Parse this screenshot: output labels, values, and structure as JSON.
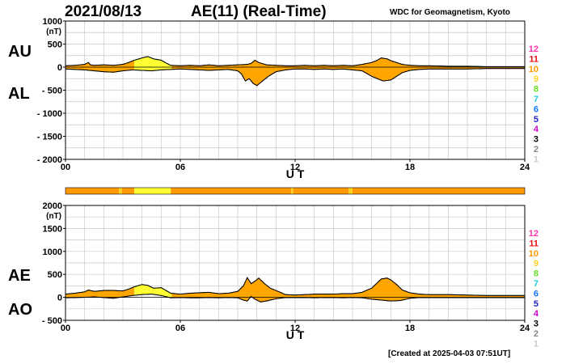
{
  "header": {
    "date": "2021/08/13",
    "title": "AE(11) (Real-Time)",
    "source": "WDC for Geomagnetism, Kyoto"
  },
  "footer": {
    "created": "[Created at 2025-04-03 07:51UT]"
  },
  "colors": {
    "fill_main": "#FFA500",
    "fill_alt": "#FFFF33",
    "curve": "#000000",
    "grid": "#C8C8C8"
  },
  "legend": {
    "stations": [
      {
        "label": "12",
        "color": "#FF33AA"
      },
      {
        "label": "11",
        "color": "#EE1111"
      },
      {
        "label": "10",
        "color": "#FF9900"
      },
      {
        "label": "9",
        "color": "#FFD21E"
      },
      {
        "label": "8",
        "color": "#66DD22"
      },
      {
        "label": "7",
        "color": "#22CCDD"
      },
      {
        "label": "6",
        "color": "#1177FF"
      },
      {
        "label": "5",
        "color": "#2222CC"
      },
      {
        "label": "4",
        "color": "#CC00CC"
      },
      {
        "label": "3",
        "color": "#000000"
      },
      {
        "label": "2",
        "color": "#888888"
      },
      {
        "label": "1",
        "color": "#CCCCCC"
      }
    ]
  },
  "station_count_bar": [
    {
      "x0": 0,
      "x1": 2.8,
      "c": "#FF9900"
    },
    {
      "x0": 2.8,
      "x1": 2.95,
      "c": "#FFD21E"
    },
    {
      "x0": 2.95,
      "x1": 3.6,
      "c": "#FF9900"
    },
    {
      "x0": 3.6,
      "x1": 5.5,
      "c": "#FFFF33"
    },
    {
      "x0": 5.5,
      "x1": 11.8,
      "c": "#FF9900"
    },
    {
      "x0": 11.8,
      "x1": 11.9,
      "c": "#FFD21E"
    },
    {
      "x0": 11.9,
      "x1": 14.8,
      "c": "#FF9900"
    },
    {
      "x0": 14.8,
      "x1": 15.0,
      "c": "#FFD21E"
    },
    {
      "x0": 15.0,
      "x1": 24,
      "c": "#FF9900"
    }
  ],
  "chart_data": [
    {
      "type": "area",
      "upper_label": "AU",
      "lower_label": "AL",
      "unit": "(nT)",
      "xlabel": "U T",
      "xlim": [
        0,
        24
      ],
      "ylim": [
        -2000,
        1000
      ],
      "yticks": [
        1000,
        500,
        0,
        -500,
        -1000,
        -1500,
        -2000
      ],
      "ytick_labels": [
        "1000",
        "500",
        "0",
        "- 500",
        "- 1000",
        "- 1500",
        "- 2000"
      ],
      "xticks": [
        0,
        6,
        12,
        18,
        24
      ],
      "xtick_labels": [
        "00",
        "06",
        "12",
        "18",
        "24"
      ],
      "yellow_ranges": [
        [
          3.6,
          5.5
        ]
      ],
      "series": [
        {
          "name": "AU",
          "x": [
            0,
            0.5,
            1,
            1.2,
            1.3,
            1.5,
            2,
            2.5,
            3,
            3.3,
            3.6,
            4,
            4.3,
            4.6,
            5,
            5.3,
            5.5,
            6,
            6.5,
            7,
            7.5,
            8,
            8.5,
            9,
            9.5,
            9.7,
            9.9,
            10.1,
            10.5,
            11,
            11.5,
            12,
            12.5,
            13,
            13.5,
            14,
            14.5,
            15,
            15.5,
            16,
            16.3,
            16.5,
            16.8,
            17,
            17.3,
            17.6,
            18,
            18.5,
            19,
            20,
            21,
            22,
            23,
            24
          ],
          "values": [
            30,
            40,
            60,
            100,
            50,
            40,
            50,
            40,
            60,
            100,
            150,
            200,
            230,
            180,
            150,
            80,
            40,
            30,
            40,
            30,
            50,
            30,
            40,
            50,
            60,
            80,
            150,
            100,
            50,
            40,
            30,
            30,
            40,
            30,
            40,
            30,
            40,
            30,
            60,
            100,
            150,
            200,
            180,
            140,
            100,
            60,
            40,
            30,
            30,
            20,
            20,
            10,
            10,
            10
          ]
        },
        {
          "name": "AL",
          "x": [
            0,
            0.5,
            1,
            1.5,
            2,
            2.5,
            3,
            3.5,
            4,
            4.5,
            5,
            5.5,
            6,
            6.5,
            7,
            7.5,
            8,
            8.5,
            9,
            9.2,
            9.4,
            9.6,
            9.8,
            10,
            10.3,
            10.6,
            11,
            11.5,
            12,
            12.5,
            13,
            13.5,
            14,
            14.5,
            15,
            15.5,
            15.8,
            16,
            16.3,
            16.6,
            17,
            17.3,
            17.6,
            18,
            18.5,
            19,
            20,
            21,
            22,
            23,
            24
          ],
          "values": [
            -40,
            -50,
            -60,
            -80,
            -100,
            -110,
            -80,
            -60,
            -70,
            -80,
            -60,
            -50,
            -40,
            -50,
            -60,
            -70,
            -60,
            -50,
            -80,
            -150,
            -300,
            -250,
            -350,
            -400,
            -300,
            -200,
            -100,
            -60,
            -40,
            -40,
            -50,
            -40,
            -50,
            -40,
            -60,
            -80,
            -150,
            -200,
            -250,
            -300,
            -280,
            -200,
            -120,
            -70,
            -50,
            -40,
            -40,
            -40,
            -30,
            -30,
            -30
          ]
        }
      ]
    },
    {
      "type": "area",
      "upper_label": "AE",
      "lower_label": "AO",
      "unit": "(nT)",
      "xlabel": "U T",
      "xlim": [
        0,
        24
      ],
      "ylim": [
        -500,
        2000
      ],
      "yticks": [
        2000,
        1500,
        1000,
        500,
        0,
        -500
      ],
      "ytick_labels": [
        "2000",
        "1500",
        "1000",
        "500",
        "0",
        "- 500"
      ],
      "xticks": [
        0,
        6,
        12,
        18,
        24
      ],
      "xtick_labels": [
        "00",
        "06",
        "12",
        "18",
        "24"
      ],
      "yellow_ranges": [
        [
          3.6,
          5.5
        ]
      ],
      "series": [
        {
          "name": "AE",
          "x": [
            0,
            0.5,
            1,
            1.2,
            1.5,
            2,
            2.5,
            3,
            3.3,
            3.6,
            4,
            4.3,
            4.6,
            5,
            5.5,
            6,
            6.5,
            7,
            7.5,
            8,
            8.5,
            9,
            9.3,
            9.5,
            9.7,
            9.9,
            10.1,
            10.4,
            10.7,
            11,
            11.5,
            12,
            12.5,
            13,
            13.5,
            14,
            14.5,
            15,
            15.5,
            16,
            16.3,
            16.5,
            16.8,
            17,
            17.3,
            17.6,
            18,
            18.5,
            19,
            20,
            21,
            22,
            23,
            24
          ],
          "values": [
            70,
            90,
            120,
            160,
            130,
            150,
            150,
            140,
            180,
            230,
            280,
            260,
            200,
            210,
            90,
            70,
            90,
            100,
            110,
            80,
            90,
            130,
            250,
            430,
            300,
            350,
            420,
            300,
            200,
            150,
            60,
            50,
            60,
            70,
            70,
            70,
            80,
            80,
            110,
            200,
            320,
            400,
            420,
            380,
            280,
            160,
            100,
            70,
            60,
            60,
            50,
            40,
            40,
            40
          ]
        },
        {
          "name": "AO",
          "x": [
            0,
            0.5,
            1,
            1.5,
            2,
            2.5,
            3,
            3.5,
            4,
            4.5,
            5,
            5.5,
            6,
            6.5,
            7,
            7.5,
            8,
            8.5,
            9,
            9.3,
            9.5,
            9.7,
            9.9,
            10.2,
            10.5,
            11,
            11.5,
            12,
            12.5,
            13,
            13.5,
            14,
            14.5,
            15,
            15.5,
            16,
            16.5,
            17,
            17.5,
            18,
            18.5,
            19,
            20,
            21,
            22,
            23,
            24
          ],
          "values": [
            -10,
            -5,
            0,
            10,
            -5,
            -20,
            10,
            40,
            60,
            70,
            40,
            -10,
            -5,
            -10,
            -10,
            -5,
            -10,
            -5,
            -10,
            -60,
            -80,
            20,
            -40,
            -100,
            -80,
            -30,
            -5,
            -5,
            -5,
            -10,
            -5,
            -5,
            -10,
            -5,
            -10,
            -40,
            -60,
            -80,
            -70,
            -20,
            -5,
            -5,
            -5,
            -5,
            -5,
            -5,
            -5
          ]
        }
      ]
    }
  ]
}
